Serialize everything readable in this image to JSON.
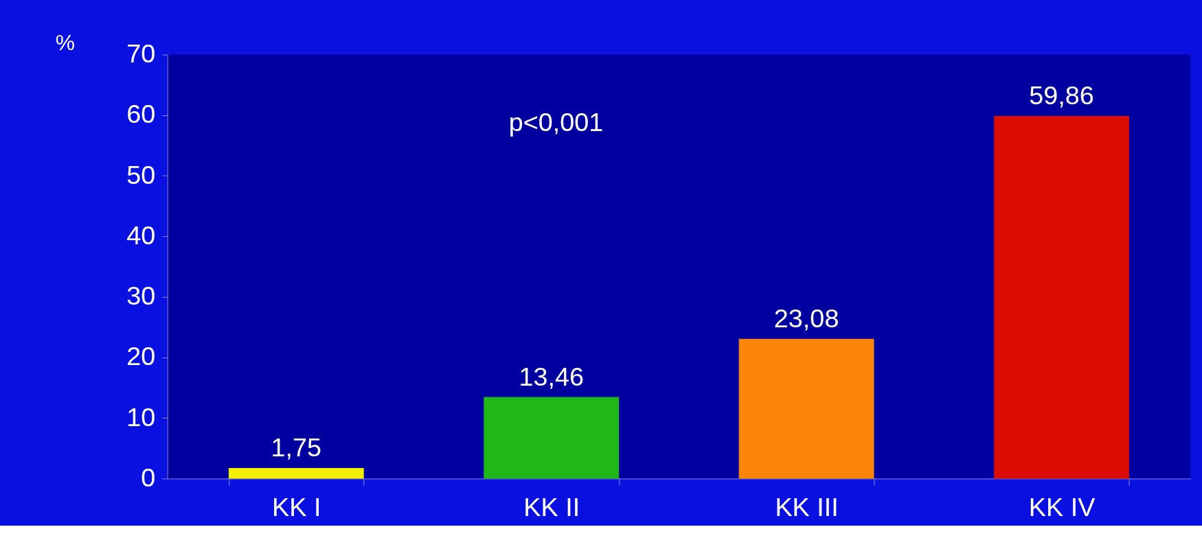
{
  "chart_data": {
    "type": "bar",
    "categories": [
      "KK I",
      "KK II",
      "KK III",
      "KK IV"
    ],
    "values": [
      1.75,
      13.46,
      23.08,
      59.86
    ],
    "colors": [
      "#f0f000",
      "#20b818",
      "#fb8509",
      "#dc0b04"
    ],
    "value_labels": [
      "1,75",
      "13,46",
      "23,08",
      "59,86"
    ],
    "ylabel": "%",
    "ylim": [
      0,
      70
    ],
    "yticks": [
      0,
      10,
      20,
      30,
      40,
      50,
      60,
      70
    ],
    "annotations": [
      "p<0,001"
    ],
    "grid": false
  }
}
